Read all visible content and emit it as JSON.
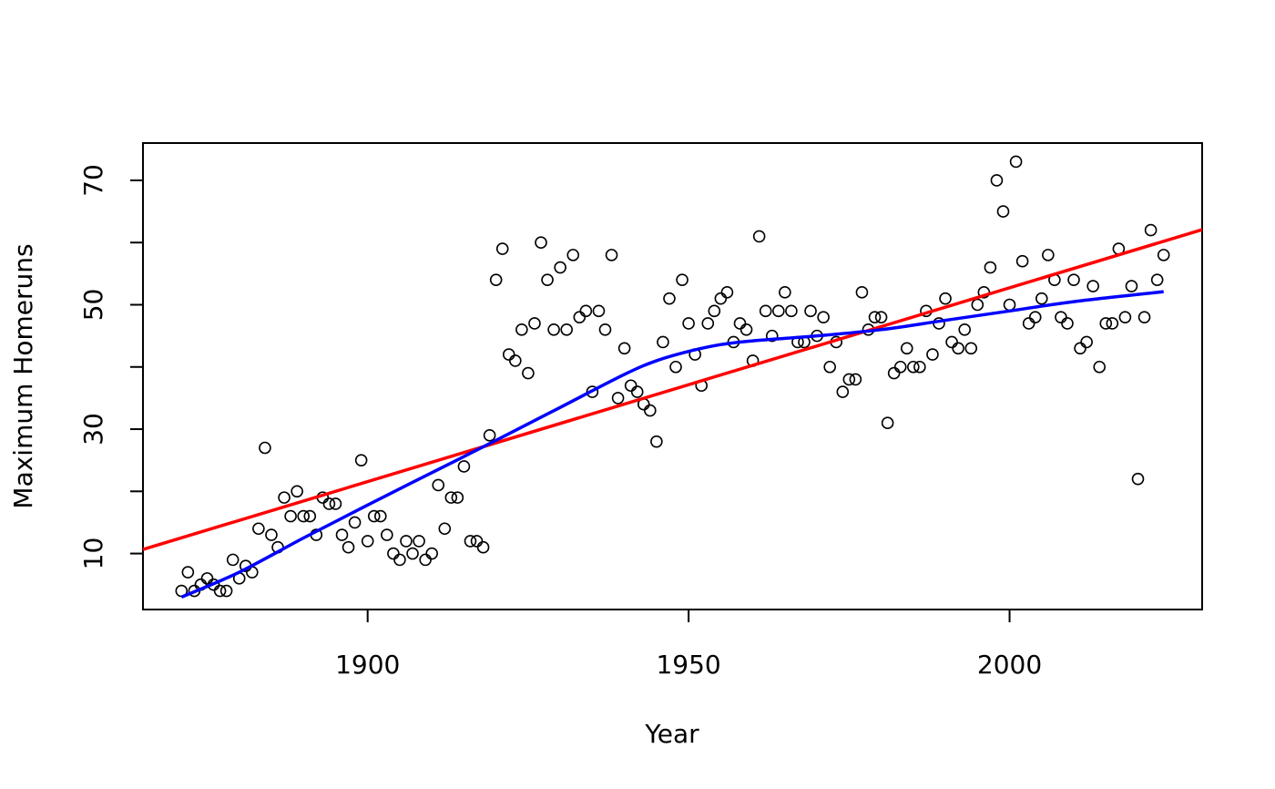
{
  "chart_data": {
    "type": "scatter",
    "xlabel": "Year",
    "ylabel": "Maximum Homeruns",
    "xlim": [
      1865,
      2030
    ],
    "ylim": [
      1,
      76
    ],
    "xticks": [
      1900,
      1950,
      2000
    ],
    "yticks": [
      10,
      30,
      50,
      70
    ],
    "grid": false,
    "colors": {
      "points": "#000000",
      "linear_fit": "#ff0000",
      "smooth_fit": "#0000ff"
    },
    "points": {
      "x": [
        1871,
        1872,
        1873,
        1874,
        1875,
        1876,
        1877,
        1878,
        1879,
        1880,
        1881,
        1882,
        1883,
        1884,
        1885,
        1886,
        1887,
        1888,
        1889,
        1890,
        1891,
        1892,
        1893,
        1894,
        1895,
        1896,
        1897,
        1898,
        1899,
        1900,
        1901,
        1902,
        1903,
        1904,
        1905,
        1906,
        1907,
        1908,
        1909,
        1910,
        1911,
        1912,
        1913,
        1914,
        1915,
        1916,
        1917,
        1918,
        1919,
        1920,
        1921,
        1922,
        1923,
        1924,
        1925,
        1926,
        1927,
        1928,
        1929,
        1930,
        1931,
        1932,
        1933,
        1934,
        1935,
        1936,
        1937,
        1938,
        1939,
        1940,
        1941,
        1942,
        1943,
        1944,
        1945,
        1946,
        1947,
        1948,
        1949,
        1950,
        1951,
        1952,
        1953,
        1954,
        1955,
        1956,
        1957,
        1958,
        1959,
        1960,
        1961,
        1962,
        1963,
        1964,
        1965,
        1966,
        1967,
        1968,
        1969,
        1970,
        1971,
        1972,
        1973,
        1974,
        1975,
        1976,
        1977,
        1978,
        1979,
        1980,
        1981,
        1982,
        1983,
        1984,
        1985,
        1986,
        1987,
        1988,
        1989,
        1990,
        1991,
        1992,
        1993,
        1994,
        1995,
        1996,
        1997,
        1998,
        1999,
        2000,
        2001,
        2002,
        2003,
        2004,
        2005,
        2006,
        2007,
        2008,
        2009,
        2010,
        2011,
        2012,
        2013,
        2014,
        2015,
        2016,
        2017,
        2018,
        2019,
        2020,
        2021,
        2022,
        2023,
        2024
      ],
      "y": [
        4,
        7,
        4,
        5,
        6,
        5,
        4,
        4,
        9,
        6,
        8,
        7,
        14,
        27,
        13,
        11,
        19,
        16,
        20,
        16,
        16,
        13,
        19,
        18,
        18,
        13,
        11,
        15,
        25,
        12,
        16,
        16,
        13,
        10,
        9,
        12,
        10,
        12,
        9,
        10,
        21,
        14,
        19,
        19,
        24,
        12,
        12,
        11,
        29,
        54,
        59,
        42,
        41,
        46,
        39,
        47,
        60,
        54,
        46,
        56,
        46,
        58,
        48,
        49,
        36,
        49,
        46,
        58,
        35,
        43,
        37,
        36,
        34,
        33,
        28,
        44,
        51,
        40,
        54,
        47,
        42,
        37,
        47,
        49,
        51,
        52,
        44,
        47,
        46,
        41,
        61,
        49,
        45,
        49,
        52,
        49,
        44,
        44,
        49,
        45,
        48,
        40,
        44,
        36,
        38,
        38,
        52,
        46,
        48,
        48,
        31,
        39,
        40,
        43,
        40,
        40,
        49,
        42,
        47,
        51,
        44,
        43,
        46,
        43,
        50,
        52,
        56,
        70,
        65,
        50,
        73,
        57,
        47,
        48,
        51,
        58,
        54,
        48,
        47,
        54,
        43,
        44,
        53,
        40,
        47,
        47,
        59,
        48,
        53,
        22,
        48,
        62,
        54,
        58
      ]
    },
    "linear_fit": {
      "x": [
        1865,
        2030
      ],
      "y": [
        10.66,
        62.07
      ]
    },
    "smooth_fit": {
      "x": [
        1871,
        1880,
        1890,
        1900,
        1910,
        1920,
        1930,
        1940,
        1945,
        1950,
        1955,
        1960,
        1970,
        1980,
        1990,
        2000,
        2010,
        2024
      ],
      "y": [
        3,
        7,
        12.5,
        17.8,
        23,
        28.2,
        33.5,
        38.8,
        41,
        42.5,
        43.6,
        44.2,
        45,
        46,
        47.5,
        49,
        50.5,
        52.1
      ]
    }
  }
}
